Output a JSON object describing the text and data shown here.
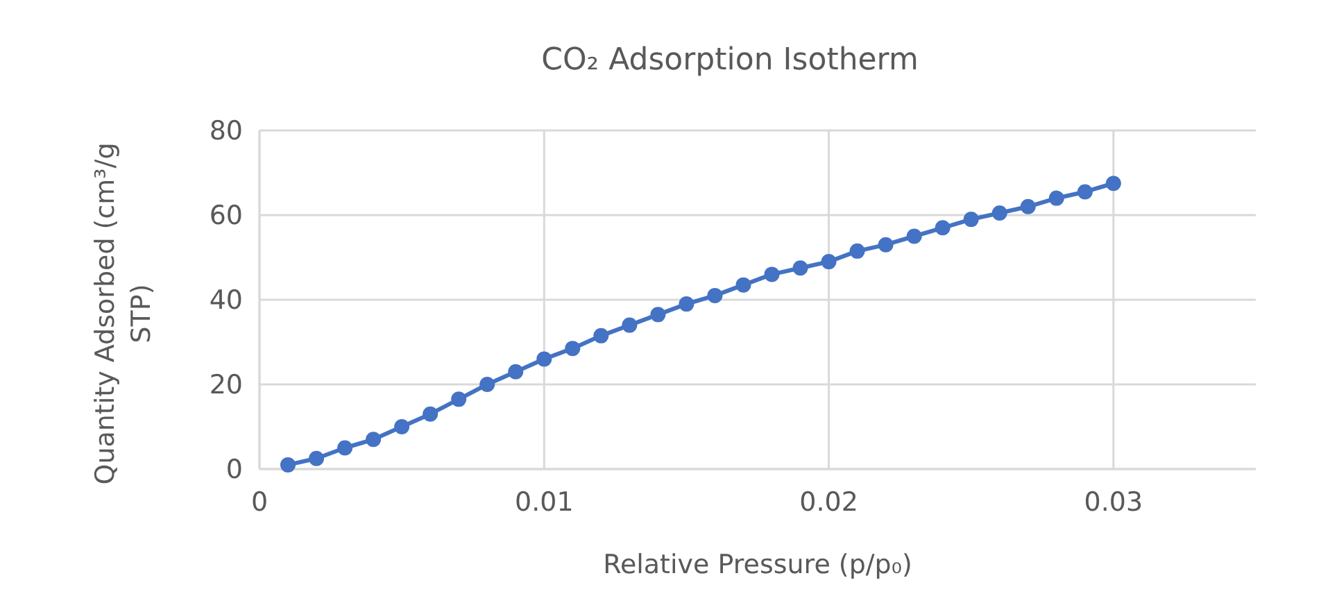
{
  "chart_data": {
    "type": "line",
    "title": "CO₂ Adsorption Isotherm",
    "xlabel": "Relative Pressure (p/p₀)",
    "ylabel": "Quantity Adsorbed (cm³/g STP)",
    "x": [
      0.001,
      0.002,
      0.003,
      0.004,
      0.005,
      0.006,
      0.007,
      0.008,
      0.009,
      0.01,
      0.011,
      0.012,
      0.013,
      0.014,
      0.015,
      0.016,
      0.017,
      0.018,
      0.019,
      0.02,
      0.021,
      0.022,
      0.023,
      0.024,
      0.025,
      0.026,
      0.027,
      0.028,
      0.029,
      0.03
    ],
    "series": [
      {
        "color": "#4472c4",
        "values": [
          1,
          2.5,
          5,
          7,
          10,
          13,
          16.5,
          20,
          23,
          26,
          28.5,
          31.5,
          34,
          36.5,
          39,
          41,
          43.5,
          46,
          47.5,
          49,
          51.5,
          53,
          55,
          57,
          59,
          60.5,
          62,
          64,
          65.5,
          67.5
        ]
      }
    ],
    "xlim": [
      0,
      0.035
    ],
    "xticks": [
      0,
      0.01,
      0.02,
      0.03
    ],
    "ylim": [
      0,
      80
    ],
    "yticks": [
      0,
      20,
      40,
      60,
      80
    ],
    "grid": true,
    "marker": "circle",
    "line_style": "solid"
  }
}
